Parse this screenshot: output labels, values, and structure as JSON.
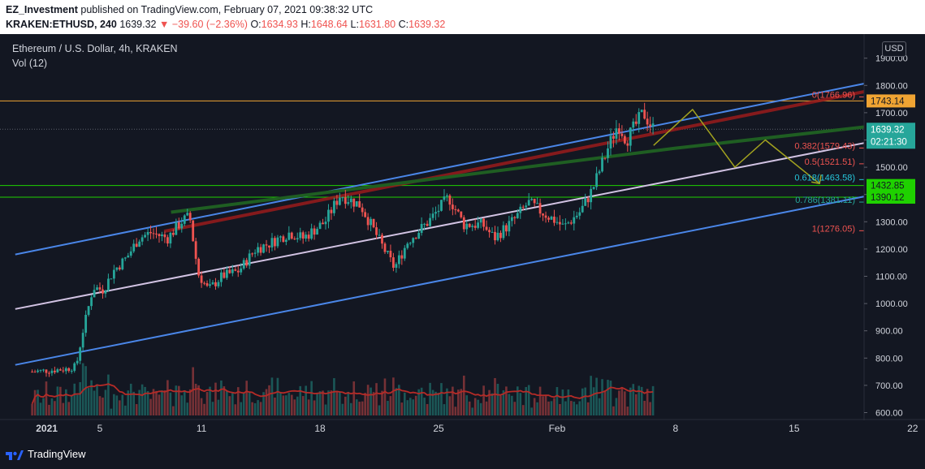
{
  "header": {
    "author": "EZ_Investment",
    "published_text": "published on TradingView.com, February 07, 2021 09:38:32 UTC",
    "symbol": "KRAKEN:ETHUSD, 240",
    "last": "1639.32",
    "change": "▼ −39.60 (−2.36%)",
    "o_label": "O:",
    "o_value": "1634.93",
    "h_label": "H:",
    "h_value": "1648.64",
    "l_label": "L:",
    "l_value": "1631.80",
    "c_label": "C:",
    "c_value": "1639.32"
  },
  "chart_title": "Ethereum / U.S. Dollar, 4h, KRAKEN",
  "volume_label": "Vol (12)",
  "currency_button": "USD",
  "footer": {
    "brand": "TradingView"
  },
  "colors": {
    "background": "#131722",
    "up": "#26a69a",
    "down": "#ef5350",
    "channel": "#4a86e8",
    "midline": "#d2c3e3",
    "red_trend": "#9a1b1b",
    "green_trend": "#1f5e22",
    "forecast": "#a3a31f",
    "orange_line": "#f0a433",
    "green_line": "#1fd100"
  },
  "chart_data": {
    "type": "candlestick",
    "title": "Ethereum / U.S. Dollar, 4h, KRAKEN",
    "interval": "4h",
    "y_axis": {
      "ticks": [
        600,
        700,
        800,
        900,
        1000,
        1100,
        1200,
        1300,
        1400,
        1500,
        1600,
        1700,
        1800,
        1900
      ],
      "labels": [
        "600.00",
        "700.00",
        "800.00",
        "900.00",
        "1000.00",
        "1100.00",
        "1200.00",
        "1300.00",
        "1400.00",
        "1500.00",
        "1600.00",
        "1700.00",
        "1800.00",
        "1900.00"
      ],
      "ylim": [
        590,
        1940
      ]
    },
    "x_axis": {
      "labels": [
        "2021",
        "5",
        "11",
        "18",
        "25",
        "Feb",
        "8",
        "15",
        "22"
      ],
      "days": [
        1,
        5,
        11,
        18,
        25,
        32,
        39,
        46,
        53
      ],
      "xlim": [
        0,
        58.4
      ]
    },
    "last_date_day": 37.7,
    "ohlc_anchor_points": [
      [
        1.0,
        750
      ],
      [
        3.0,
        760
      ],
      [
        3.6,
        770
      ],
      [
        4.0,
        900
      ],
      [
        4.6,
        1060
      ],
      [
        5.2,
        1050
      ],
      [
        5.8,
        1120
      ],
      [
        6.6,
        1170
      ],
      [
        7.3,
        1240
      ],
      [
        8.0,
        1260
      ],
      [
        9.0,
        1240
      ],
      [
        9.8,
        1300
      ],
      [
        10.3,
        1320
      ],
      [
        10.8,
        1110
      ],
      [
        11.4,
        1050
      ],
      [
        12.2,
        1100
      ],
      [
        13.2,
        1120
      ],
      [
        14.2,
        1200
      ],
      [
        15.0,
        1220
      ],
      [
        16.2,
        1260
      ],
      [
        17.0,
        1240
      ],
      [
        18.3,
        1300
      ],
      [
        19.2,
        1400
      ],
      [
        20.4,
        1360
      ],
      [
        21.6,
        1220
      ],
      [
        22.4,
        1130
      ],
      [
        23.2,
        1230
      ],
      [
        24.4,
        1300
      ],
      [
        25.6,
        1390
      ],
      [
        26.5,
        1290
      ],
      [
        27.6,
        1290
      ],
      [
        28.3,
        1240
      ],
      [
        29.5,
        1310
      ],
      [
        30.3,
        1370
      ],
      [
        31.0,
        1340
      ],
      [
        32.0,
        1300
      ],
      [
        32.4,
        1280
      ],
      [
        33.4,
        1340
      ],
      [
        34.1,
        1420
      ],
      [
        35.0,
        1570
      ],
      [
        35.6,
        1660
      ],
      [
        36.1,
        1600
      ],
      [
        37.1,
        1700
      ],
      [
        37.7,
        1639
      ]
    ],
    "volume_ma_color": "#b52b27",
    "horizontal_levels": [
      {
        "price": 1743.14,
        "label": "1743.14",
        "color": "#f0a433"
      },
      {
        "price": 1432.85,
        "label": "1432.85",
        "color": "#1fd100"
      },
      {
        "price": 1390.12,
        "label": "1390.12",
        "color": "#1fd100"
      }
    ],
    "fibonacci": [
      {
        "ratio": "0",
        "price": 1766.96,
        "label": "0(1766.96)",
        "color": "#ef5350"
      },
      {
        "ratio": "0.382",
        "price": 1579.43,
        "label": "0.382(1579.43)",
        "color": "#ef5350"
      },
      {
        "ratio": "0.5",
        "price": 1521.51,
        "label": "0.5(1521.51)",
        "color": "#ef5350"
      },
      {
        "ratio": "0.618",
        "price": 1463.58,
        "label": "0.618(1463.58)",
        "color": "#26c6da"
      },
      {
        "ratio": "0.786",
        "price": 1381.11,
        "label": "0.786(1381.11)",
        "color": "#26a69a"
      },
      {
        "ratio": "1",
        "price": 1276.05,
        "label": "1(1276.05)",
        "color": "#ef5350"
      }
    ],
    "price_tags": [
      {
        "text": "1639.32",
        "sub": "02:21:30",
        "color": "#26a69a",
        "price": 1639.32
      }
    ],
    "trendlines": [
      {
        "name": "upper-channel",
        "color": "#4a86e8",
        "points": [
          [
            0.0,
            1180
          ],
          [
            56.0,
            1880
          ]
        ]
      },
      {
        "name": "midline",
        "color": "#d2c3e3",
        "points": [
          [
            0.0,
            980
          ],
          [
            56.0,
            1660
          ]
        ]
      },
      {
        "name": "lower-channel",
        "color": "#4a86e8",
        "points": [
          [
            0.0,
            775
          ],
          [
            56.0,
            1465
          ]
        ]
      },
      {
        "name": "red-resistance",
        "color": "#9a1b1b",
        "points": [
          [
            8.8,
            1265
          ],
          [
            52.8,
            1810
          ]
        ]
      },
      {
        "name": "green-trend",
        "color": "#1f5e22",
        "points": [
          [
            9.2,
            1335
          ],
          [
            39.0,
            1570
          ],
          [
            58.4,
            1705
          ]
        ]
      },
      {
        "name": "forecast-path",
        "color": "#a3a31f",
        "points": [
          [
            37.7,
            1580
          ],
          [
            40.0,
            1712
          ],
          [
            42.5,
            1500
          ],
          [
            44.3,
            1600
          ],
          [
            47.5,
            1440
          ]
        ]
      }
    ]
  }
}
